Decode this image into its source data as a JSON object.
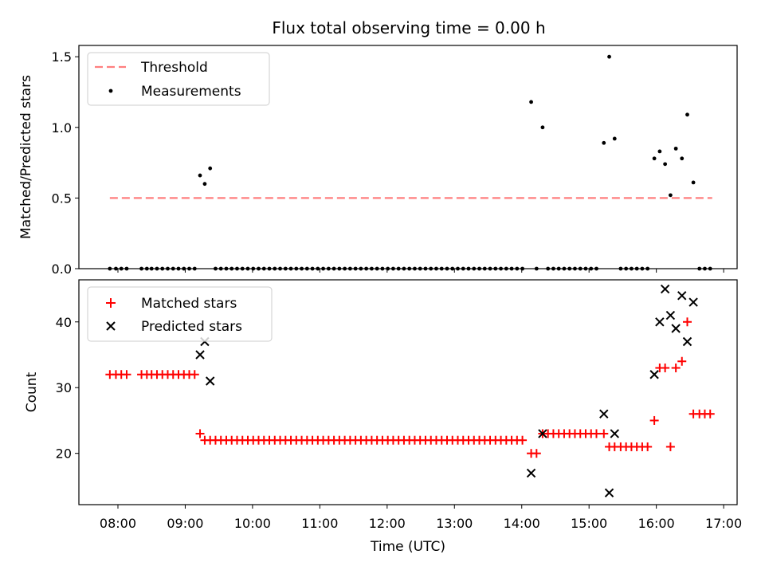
{
  "chart_data": [
    {
      "type": "scatter",
      "title": "Flux total observing time = 0.00 h",
      "ylabel": "Matched/Predicted stars",
      "ylim": [
        0,
        1.58
      ],
      "yticks": [
        0.0,
        0.5,
        1.0,
        1.5
      ],
      "ytick_labels": [
        "0.0",
        "0.5",
        "1.0",
        "1.5"
      ],
      "legend_position": "upper-left",
      "threshold": {
        "name": "Threshold",
        "value": 0.5,
        "x_start": 7.88,
        "x_end": 16.83,
        "color": "#ff7f7f"
      },
      "series": [
        {
          "name": "Measurements",
          "marker": "dot",
          "color": "#000000",
          "points": [
            [
              7.88,
              0
            ],
            [
              7.97,
              0
            ],
            [
              8.05,
              0
            ],
            [
              8.13,
              0
            ],
            [
              8.35,
              0
            ],
            [
              8.43,
              0
            ],
            [
              8.5,
              0
            ],
            [
              8.58,
              0
            ],
            [
              8.66,
              0
            ],
            [
              8.74,
              0
            ],
            [
              8.82,
              0
            ],
            [
              8.9,
              0
            ],
            [
              8.98,
              0
            ],
            [
              9.06,
              0
            ],
            [
              9.14,
              0
            ],
            [
              9.22,
              0.66
            ],
            [
              9.29,
              0.6
            ],
            [
              9.37,
              0.71
            ],
            [
              9.45,
              0
            ],
            [
              9.53,
              0
            ],
            [
              9.61,
              0
            ],
            [
              9.69,
              0
            ],
            [
              9.77,
              0
            ],
            [
              9.85,
              0
            ],
            [
              9.93,
              0
            ],
            [
              10.01,
              0
            ],
            [
              10.09,
              0
            ],
            [
              10.17,
              0
            ],
            [
              10.25,
              0
            ],
            [
              10.33,
              0
            ],
            [
              10.41,
              0
            ],
            [
              10.49,
              0
            ],
            [
              10.57,
              0
            ],
            [
              10.65,
              0
            ],
            [
              10.73,
              0
            ],
            [
              10.81,
              0
            ],
            [
              10.89,
              0
            ],
            [
              10.97,
              0
            ],
            [
              11.05,
              0
            ],
            [
              11.13,
              0
            ],
            [
              11.21,
              0
            ],
            [
              11.29,
              0
            ],
            [
              11.37,
              0
            ],
            [
              11.45,
              0
            ],
            [
              11.53,
              0
            ],
            [
              11.61,
              0
            ],
            [
              11.69,
              0
            ],
            [
              11.77,
              0
            ],
            [
              11.85,
              0
            ],
            [
              11.93,
              0
            ],
            [
              12.01,
              0
            ],
            [
              12.09,
              0
            ],
            [
              12.17,
              0
            ],
            [
              12.25,
              0
            ],
            [
              12.33,
              0
            ],
            [
              12.41,
              0
            ],
            [
              12.49,
              0
            ],
            [
              12.57,
              0
            ],
            [
              12.65,
              0
            ],
            [
              12.73,
              0
            ],
            [
              12.81,
              0
            ],
            [
              12.89,
              0
            ],
            [
              12.97,
              0
            ],
            [
              13.05,
              0
            ],
            [
              13.13,
              0
            ],
            [
              13.21,
              0
            ],
            [
              13.29,
              0
            ],
            [
              13.37,
              0
            ],
            [
              13.45,
              0
            ],
            [
              13.53,
              0
            ],
            [
              13.61,
              0
            ],
            [
              13.69,
              0
            ],
            [
              13.77,
              0
            ],
            [
              13.85,
              0
            ],
            [
              13.93,
              0
            ],
            [
              14.01,
              0
            ],
            [
              14.14,
              1.18
            ],
            [
              14.22,
              0
            ],
            [
              14.31,
              1.0
            ],
            [
              14.39,
              0
            ],
            [
              14.47,
              0
            ],
            [
              14.55,
              0
            ],
            [
              14.63,
              0
            ],
            [
              14.71,
              0
            ],
            [
              14.79,
              0
            ],
            [
              14.87,
              0
            ],
            [
              14.95,
              0
            ],
            [
              15.03,
              0
            ],
            [
              15.11,
              0
            ],
            [
              15.22,
              0.89
            ],
            [
              15.3,
              1.5
            ],
            [
              15.38,
              0.92
            ],
            [
              15.47,
              0
            ],
            [
              15.55,
              0
            ],
            [
              15.63,
              0
            ],
            [
              15.71,
              0
            ],
            [
              15.79,
              0
            ],
            [
              15.87,
              0
            ],
            [
              15.97,
              0.78
            ],
            [
              16.05,
              0.83
            ],
            [
              16.13,
              0.74
            ],
            [
              16.21,
              0.52
            ],
            [
              16.29,
              0.85
            ],
            [
              16.38,
              0.78
            ],
            [
              16.46,
              1.09
            ],
            [
              16.55,
              0.61
            ],
            [
              16.64,
              0
            ],
            [
              16.72,
              0
            ],
            [
              16.8,
              0
            ]
          ]
        }
      ]
    },
    {
      "type": "scatter",
      "xlabel": "Time (UTC)",
      "ylabel": "Count",
      "xlim": [
        7.42,
        17.2
      ],
      "ylim": [
        12.2,
        46.4
      ],
      "xticks": [
        8,
        9,
        10,
        11,
        12,
        13,
        14,
        15,
        16,
        17
      ],
      "xtick_labels": [
        "08:00",
        "09:00",
        "10:00",
        "11:00",
        "12:00",
        "13:00",
        "14:00",
        "15:00",
        "16:00",
        "17:00"
      ],
      "yticks": [
        20,
        30,
        40
      ],
      "ytick_labels": [
        "20",
        "30",
        "40"
      ],
      "legend_position": "upper-left",
      "series": [
        {
          "name": "Matched stars",
          "marker": "plus",
          "color": "#ff0000",
          "points": [
            [
              7.88,
              32
            ],
            [
              7.97,
              32
            ],
            [
              8.05,
              32
            ],
            [
              8.13,
              32
            ],
            [
              8.35,
              32
            ],
            [
              8.43,
              32
            ],
            [
              8.5,
              32
            ],
            [
              8.58,
              32
            ],
            [
              8.66,
              32
            ],
            [
              8.74,
              32
            ],
            [
              8.82,
              32
            ],
            [
              8.9,
              32
            ],
            [
              8.98,
              32
            ],
            [
              9.06,
              32
            ],
            [
              9.14,
              32
            ],
            [
              9.22,
              23
            ],
            [
              9.29,
              22
            ],
            [
              9.37,
              22
            ],
            [
              9.45,
              22
            ],
            [
              9.53,
              22
            ],
            [
              9.61,
              22
            ],
            [
              9.69,
              22
            ],
            [
              9.77,
              22
            ],
            [
              9.85,
              22
            ],
            [
              9.93,
              22
            ],
            [
              10.01,
              22
            ],
            [
              10.09,
              22
            ],
            [
              10.17,
              22
            ],
            [
              10.25,
              22
            ],
            [
              10.33,
              22
            ],
            [
              10.41,
              22
            ],
            [
              10.49,
              22
            ],
            [
              10.57,
              22
            ],
            [
              10.65,
              22
            ],
            [
              10.73,
              22
            ],
            [
              10.81,
              22
            ],
            [
              10.89,
              22
            ],
            [
              10.97,
              22
            ],
            [
              11.05,
              22
            ],
            [
              11.13,
              22
            ],
            [
              11.21,
              22
            ],
            [
              11.29,
              22
            ],
            [
              11.37,
              22
            ],
            [
              11.45,
              22
            ],
            [
              11.53,
              22
            ],
            [
              11.61,
              22
            ],
            [
              11.69,
              22
            ],
            [
              11.77,
              22
            ],
            [
              11.85,
              22
            ],
            [
              11.93,
              22
            ],
            [
              12.01,
              22
            ],
            [
              12.09,
              22
            ],
            [
              12.17,
              22
            ],
            [
              12.25,
              22
            ],
            [
              12.33,
              22
            ],
            [
              12.41,
              22
            ],
            [
              12.49,
              22
            ],
            [
              12.57,
              22
            ],
            [
              12.65,
              22
            ],
            [
              12.73,
              22
            ],
            [
              12.81,
              22
            ],
            [
              12.89,
              22
            ],
            [
              12.97,
              22
            ],
            [
              13.05,
              22
            ],
            [
              13.13,
              22
            ],
            [
              13.21,
              22
            ],
            [
              13.29,
              22
            ],
            [
              13.37,
              22
            ],
            [
              13.45,
              22
            ],
            [
              13.53,
              22
            ],
            [
              13.61,
              22
            ],
            [
              13.69,
              22
            ],
            [
              13.77,
              22
            ],
            [
              13.85,
              22
            ],
            [
              13.93,
              22
            ],
            [
              14.01,
              22
            ],
            [
              14.14,
              20
            ],
            [
              14.22,
              20
            ],
            [
              14.31,
              23
            ],
            [
              14.39,
              23
            ],
            [
              14.47,
              23
            ],
            [
              14.55,
              23
            ],
            [
              14.63,
              23
            ],
            [
              14.71,
              23
            ],
            [
              14.79,
              23
            ],
            [
              14.87,
              23
            ],
            [
              14.95,
              23
            ],
            [
              15.03,
              23
            ],
            [
              15.11,
              23
            ],
            [
              15.22,
              23
            ],
            [
              15.3,
              21
            ],
            [
              15.38,
              21
            ],
            [
              15.47,
              21
            ],
            [
              15.55,
              21
            ],
            [
              15.63,
              21
            ],
            [
              15.71,
              21
            ],
            [
              15.79,
              21
            ],
            [
              15.87,
              21
            ],
            [
              15.97,
              25
            ],
            [
              16.05,
              33
            ],
            [
              16.13,
              33
            ],
            [
              16.21,
              21
            ],
            [
              16.29,
              33
            ],
            [
              16.38,
              34
            ],
            [
              16.46,
              40
            ],
            [
              16.55,
              26
            ],
            [
              16.64,
              26
            ],
            [
              16.72,
              26
            ],
            [
              16.8,
              26
            ]
          ]
        },
        {
          "name": "Predicted stars",
          "marker": "x",
          "color": "#000000",
          "points": [
            [
              9.22,
              35
            ],
            [
              9.29,
              37
            ],
            [
              9.37,
              31
            ],
            [
              14.14,
              17
            ],
            [
              14.31,
              23
            ],
            [
              15.22,
              26
            ],
            [
              15.3,
              14
            ],
            [
              15.38,
              23
            ],
            [
              15.97,
              32
            ],
            [
              16.05,
              40
            ],
            [
              16.13,
              45
            ],
            [
              16.21,
              41
            ],
            [
              16.29,
              39
            ],
            [
              16.38,
              44
            ],
            [
              16.46,
              37
            ],
            [
              16.55,
              43
            ]
          ]
        }
      ]
    }
  ]
}
